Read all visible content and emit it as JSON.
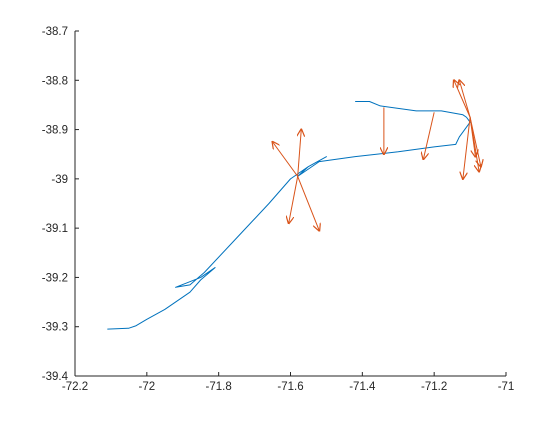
{
  "chart_data": {
    "type": "line",
    "title": "",
    "xlabel": "",
    "ylabel": "",
    "xlim": [
      -72.2,
      -71.0
    ],
    "ylim": [
      -39.4,
      -38.7
    ],
    "xticks": [
      -72.2,
      -72.0,
      -71.8,
      -71.6,
      -71.4,
      -71.2,
      -71.0
    ],
    "yticks": [
      -39.4,
      -39.3,
      -39.2,
      -39.1,
      -39.0,
      -38.9,
      -38.8,
      -38.7
    ],
    "xtick_labels": [
      "-72.2",
      "-72",
      "-71.8",
      "-71.6",
      "-71.4",
      "-71.2",
      "-71"
    ],
    "ytick_labels": [
      "-39.4",
      "-39.3",
      "-39.2",
      "-39.1",
      "-39",
      "-38.9",
      "-38.8",
      "-38.7"
    ],
    "grid": false,
    "line_color": "#0072BD",
    "arrow_color": "#D95319",
    "series": [
      {
        "type": "line",
        "x": [
          -72.11,
          -72.05,
          -72.03,
          -72.0,
          -71.95,
          -71.88,
          -71.85,
          -71.81,
          -71.85,
          -71.92,
          -71.88,
          -71.84,
          -71.75,
          -71.66,
          -71.6,
          -71.55,
          -71.5,
          -71.55,
          -71.58,
          -71.52,
          -71.42,
          -71.3,
          -71.2,
          -71.14,
          -71.13,
          -71.12,
          -71.1,
          -71.11,
          -71.12,
          -71.18,
          -71.25,
          -71.35,
          -71.38,
          -71.42
        ],
        "y": [
          -39.305,
          -39.303,
          -39.298,
          -39.285,
          -39.265,
          -39.23,
          -39.205,
          -39.18,
          -39.2,
          -39.22,
          -39.215,
          -39.19,
          -39.12,
          -39.05,
          -39.0,
          -38.975,
          -38.955,
          -38.975,
          -38.995,
          -38.965,
          -38.955,
          -38.945,
          -38.935,
          -38.93,
          -38.915,
          -38.905,
          -38.885,
          -38.875,
          -38.87,
          -38.862,
          -38.862,
          -38.852,
          -38.843,
          -38.843
        ]
      },
      {
        "type": "quiver",
        "vectors": [
          {
            "x": -71.58,
            "y": -38.995,
            "u": 0.01,
            "v": 0.095
          },
          {
            "x": -71.58,
            "y": -38.995,
            "u": -0.07,
            "v": 0.07
          },
          {
            "x": -71.58,
            "y": -38.995,
            "u": 0.06,
            "v": -0.11
          },
          {
            "x": -71.58,
            "y": -38.995,
            "u": -0.025,
            "v": -0.095
          },
          {
            "x": -71.34,
            "y": -38.855,
            "u": 0.0,
            "v": -0.095
          },
          {
            "x": -71.2,
            "y": -38.865,
            "u": -0.03,
            "v": -0.095
          },
          {
            "x": -71.1,
            "y": -38.875,
            "u": -0.045,
            "v": 0.075
          },
          {
            "x": -71.1,
            "y": -38.875,
            "u": -0.03,
            "v": 0.075
          },
          {
            "x": -71.1,
            "y": -38.875,
            "u": -0.02,
            "v": -0.125
          },
          {
            "x": -71.1,
            "y": -38.875,
            "u": 0.03,
            "v": -0.1
          },
          {
            "x": -71.1,
            "y": -38.875,
            "u": 0.025,
            "v": -0.11
          },
          {
            "x": -71.1,
            "y": -38.875,
            "u": 0.015,
            "v": -0.08
          }
        ]
      }
    ]
  }
}
